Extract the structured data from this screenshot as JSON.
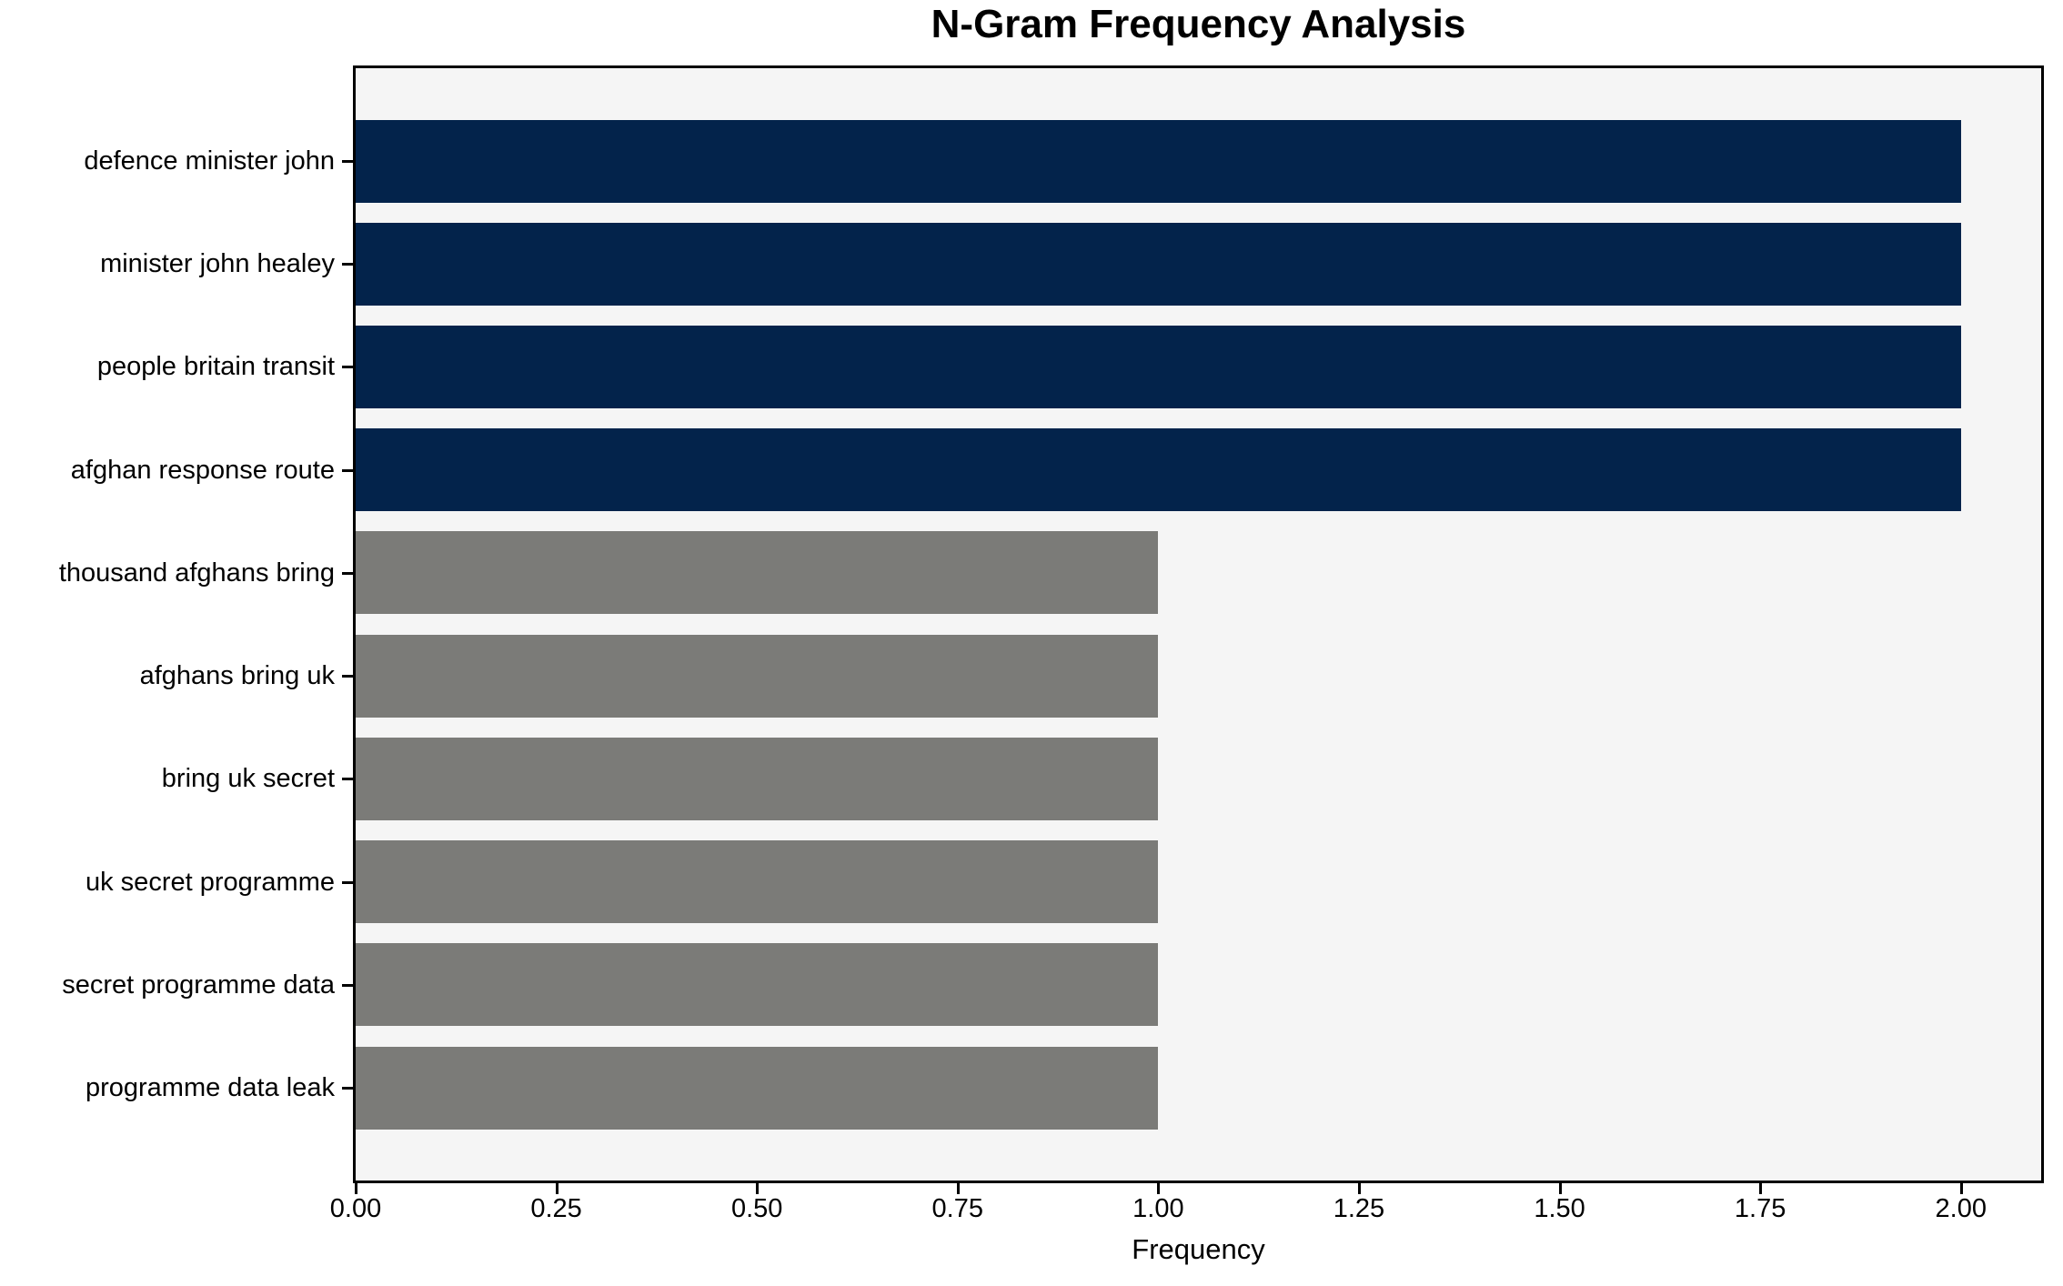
{
  "chart_data": {
    "type": "bar",
    "orientation": "horizontal",
    "title": "N-Gram Frequency Analysis",
    "xlabel": "Frequency",
    "ylabel": "",
    "categories": [
      "defence minister john",
      "minister john healey",
      "people britain transit",
      "afghan response route",
      "thousand afghans bring",
      "afghans bring uk",
      "bring uk secret",
      "uk secret programme",
      "secret programme data",
      "programme data leak"
    ],
    "values": [
      2,
      2,
      2,
      2,
      1,
      1,
      1,
      1,
      1,
      1
    ],
    "bar_colors": [
      "#03234b",
      "#03234b",
      "#03234b",
      "#03234b",
      "#7b7b78",
      "#7b7b78",
      "#7b7b78",
      "#7b7b78",
      "#7b7b78",
      "#7b7b78"
    ],
    "x_tick_values": [
      0,
      0.25,
      0.5,
      0.75,
      1.0,
      1.25,
      1.5,
      1.75,
      2.0
    ],
    "x_tick_labels": [
      "0.00",
      "0.25",
      "0.50",
      "0.75",
      "1.00",
      "1.25",
      "1.50",
      "1.75",
      "2.00"
    ],
    "xlim": [
      0,
      2.1
    ],
    "grid": false,
    "legend_visible": false,
    "plot_background": "#f5f5f5",
    "figure_background": "#ffffff",
    "colors": {
      "highlight_bar": "#03234b",
      "regular_bar": "#7b7b78",
      "text": "#000000",
      "spine": "#000000"
    }
  }
}
